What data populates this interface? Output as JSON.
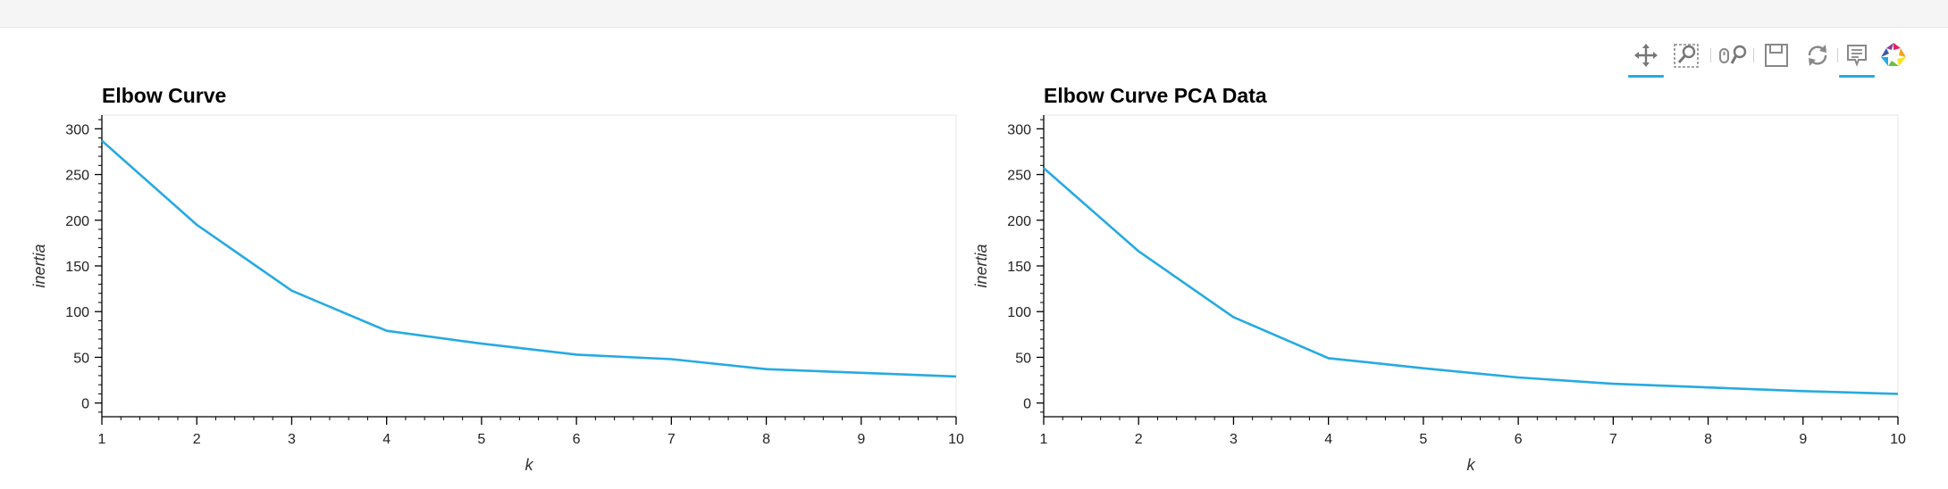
{
  "toolbar": {
    "tools": [
      {
        "name": "pan",
        "icon": "pan-icon",
        "active": true
      },
      {
        "name": "box-zoom",
        "icon": "box-zoom-icon",
        "active": false
      },
      {
        "name": "wheel-zoom",
        "icon": "wheel-zoom-icon",
        "active": false
      },
      {
        "name": "save",
        "icon": "save-icon",
        "active": false
      },
      {
        "name": "reset",
        "icon": "reset-icon",
        "active": false
      },
      {
        "name": "hover",
        "icon": "hover-icon",
        "active": true
      },
      {
        "name": "bokeh-logo",
        "icon": "bokeh-logo-icon",
        "active": false
      }
    ],
    "accent": "#26aae1"
  },
  "chart_data": [
    {
      "type": "line",
      "title": "Elbow Curve",
      "xlabel": "k",
      "ylabel": "inertia",
      "x": [
        1,
        2,
        3,
        4,
        5,
        6,
        7,
        8,
        9,
        10
      ],
      "y": [
        287,
        195,
        123,
        79,
        65,
        53,
        48,
        37,
        33,
        29
      ],
      "xlim": [
        1,
        10
      ],
      "ylim": [
        -15,
        315
      ],
      "yticks": [
        0,
        50,
        100,
        150,
        200,
        250,
        300
      ],
      "xticks": [
        1,
        2,
        3,
        4,
        5,
        6,
        7,
        8,
        9,
        10
      ],
      "color": "#26aae1",
      "grid": false
    },
    {
      "type": "line",
      "title": "Elbow Curve PCA Data",
      "xlabel": "k",
      "ylabel": "inertia",
      "x": [
        1,
        2,
        3,
        4,
        5,
        6,
        7,
        8,
        9,
        10
      ],
      "y": [
        257,
        166,
        94,
        49,
        38,
        28,
        21,
        17,
        13,
        10
      ],
      "xlim": [
        1,
        10
      ],
      "ylim": [
        -15,
        315
      ],
      "yticks": [
        0,
        50,
        100,
        150,
        200,
        250,
        300
      ],
      "xticks": [
        1,
        2,
        3,
        4,
        5,
        6,
        7,
        8,
        9,
        10
      ],
      "color": "#26aae1",
      "grid": false
    }
  ]
}
